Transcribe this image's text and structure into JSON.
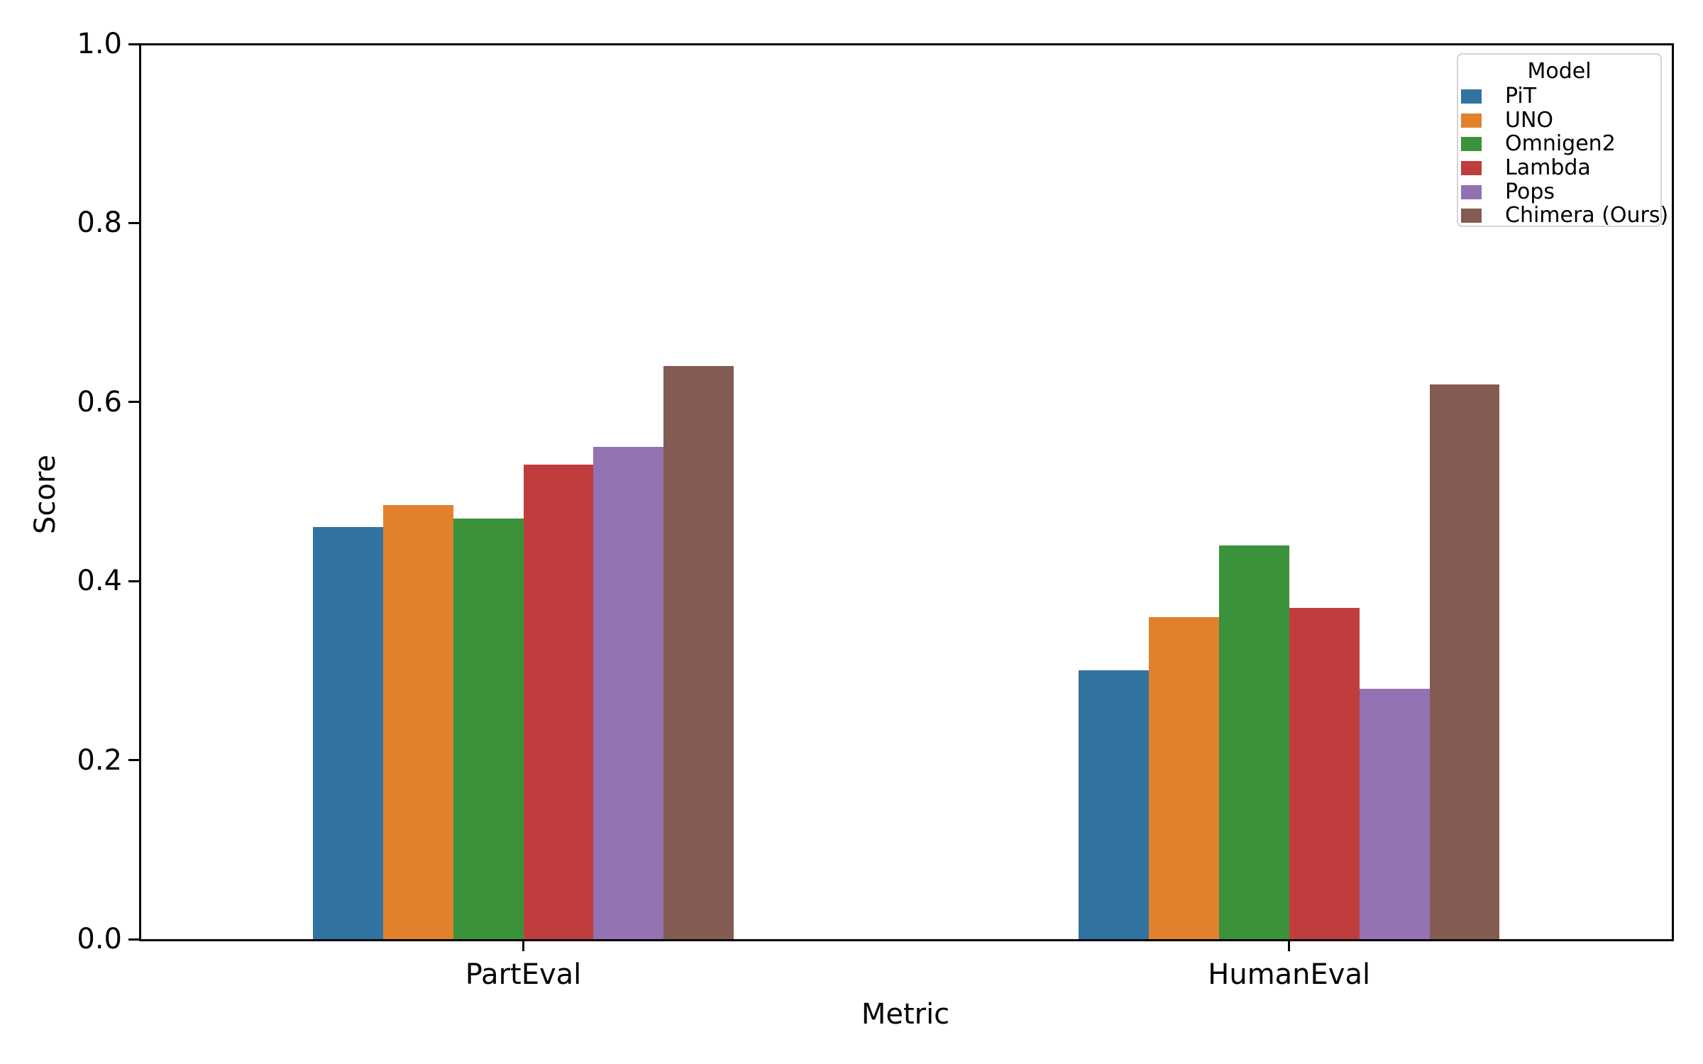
{
  "chart_data": {
    "type": "bar",
    "title": "",
    "xlabel": "Metric",
    "ylabel": "Score",
    "categories": [
      "PartEval",
      "HumanEval"
    ],
    "series": [
      {
        "name": "PiT",
        "color": "#3274a1",
        "values": [
          0.46,
          0.3
        ]
      },
      {
        "name": "UNO",
        "color": "#e1812c",
        "values": [
          0.485,
          0.36
        ]
      },
      {
        "name": "Omnigen2",
        "color": "#3a923a",
        "values": [
          0.47,
          0.44
        ]
      },
      {
        "name": "Lambda",
        "color": "#c03d3e",
        "values": [
          0.53,
          0.37
        ]
      },
      {
        "name": "Pops",
        "color": "#9372b2",
        "values": [
          0.55,
          0.28
        ]
      },
      {
        "name": "Chimera (Ours)",
        "color": "#845b53",
        "values": [
          0.64,
          0.62
        ]
      }
    ],
    "ylim": [
      0.0,
      1.0
    ],
    "yticks": [
      0.0,
      0.2,
      0.4,
      0.6,
      0.8,
      1.0
    ],
    "ytick_labels": [
      "0.0",
      "0.2",
      "0.4",
      "0.6",
      "0.8",
      "1.0"
    ],
    "legend": {
      "title": "Model",
      "entries": [
        "PiT",
        "UNO",
        "Omnigen2",
        "Lambda",
        "Pops",
        "Chimera (Ours)"
      ],
      "position": "upper right"
    },
    "grid": false,
    "spine_color": "#000000",
    "background_color": "#ffffff"
  }
}
